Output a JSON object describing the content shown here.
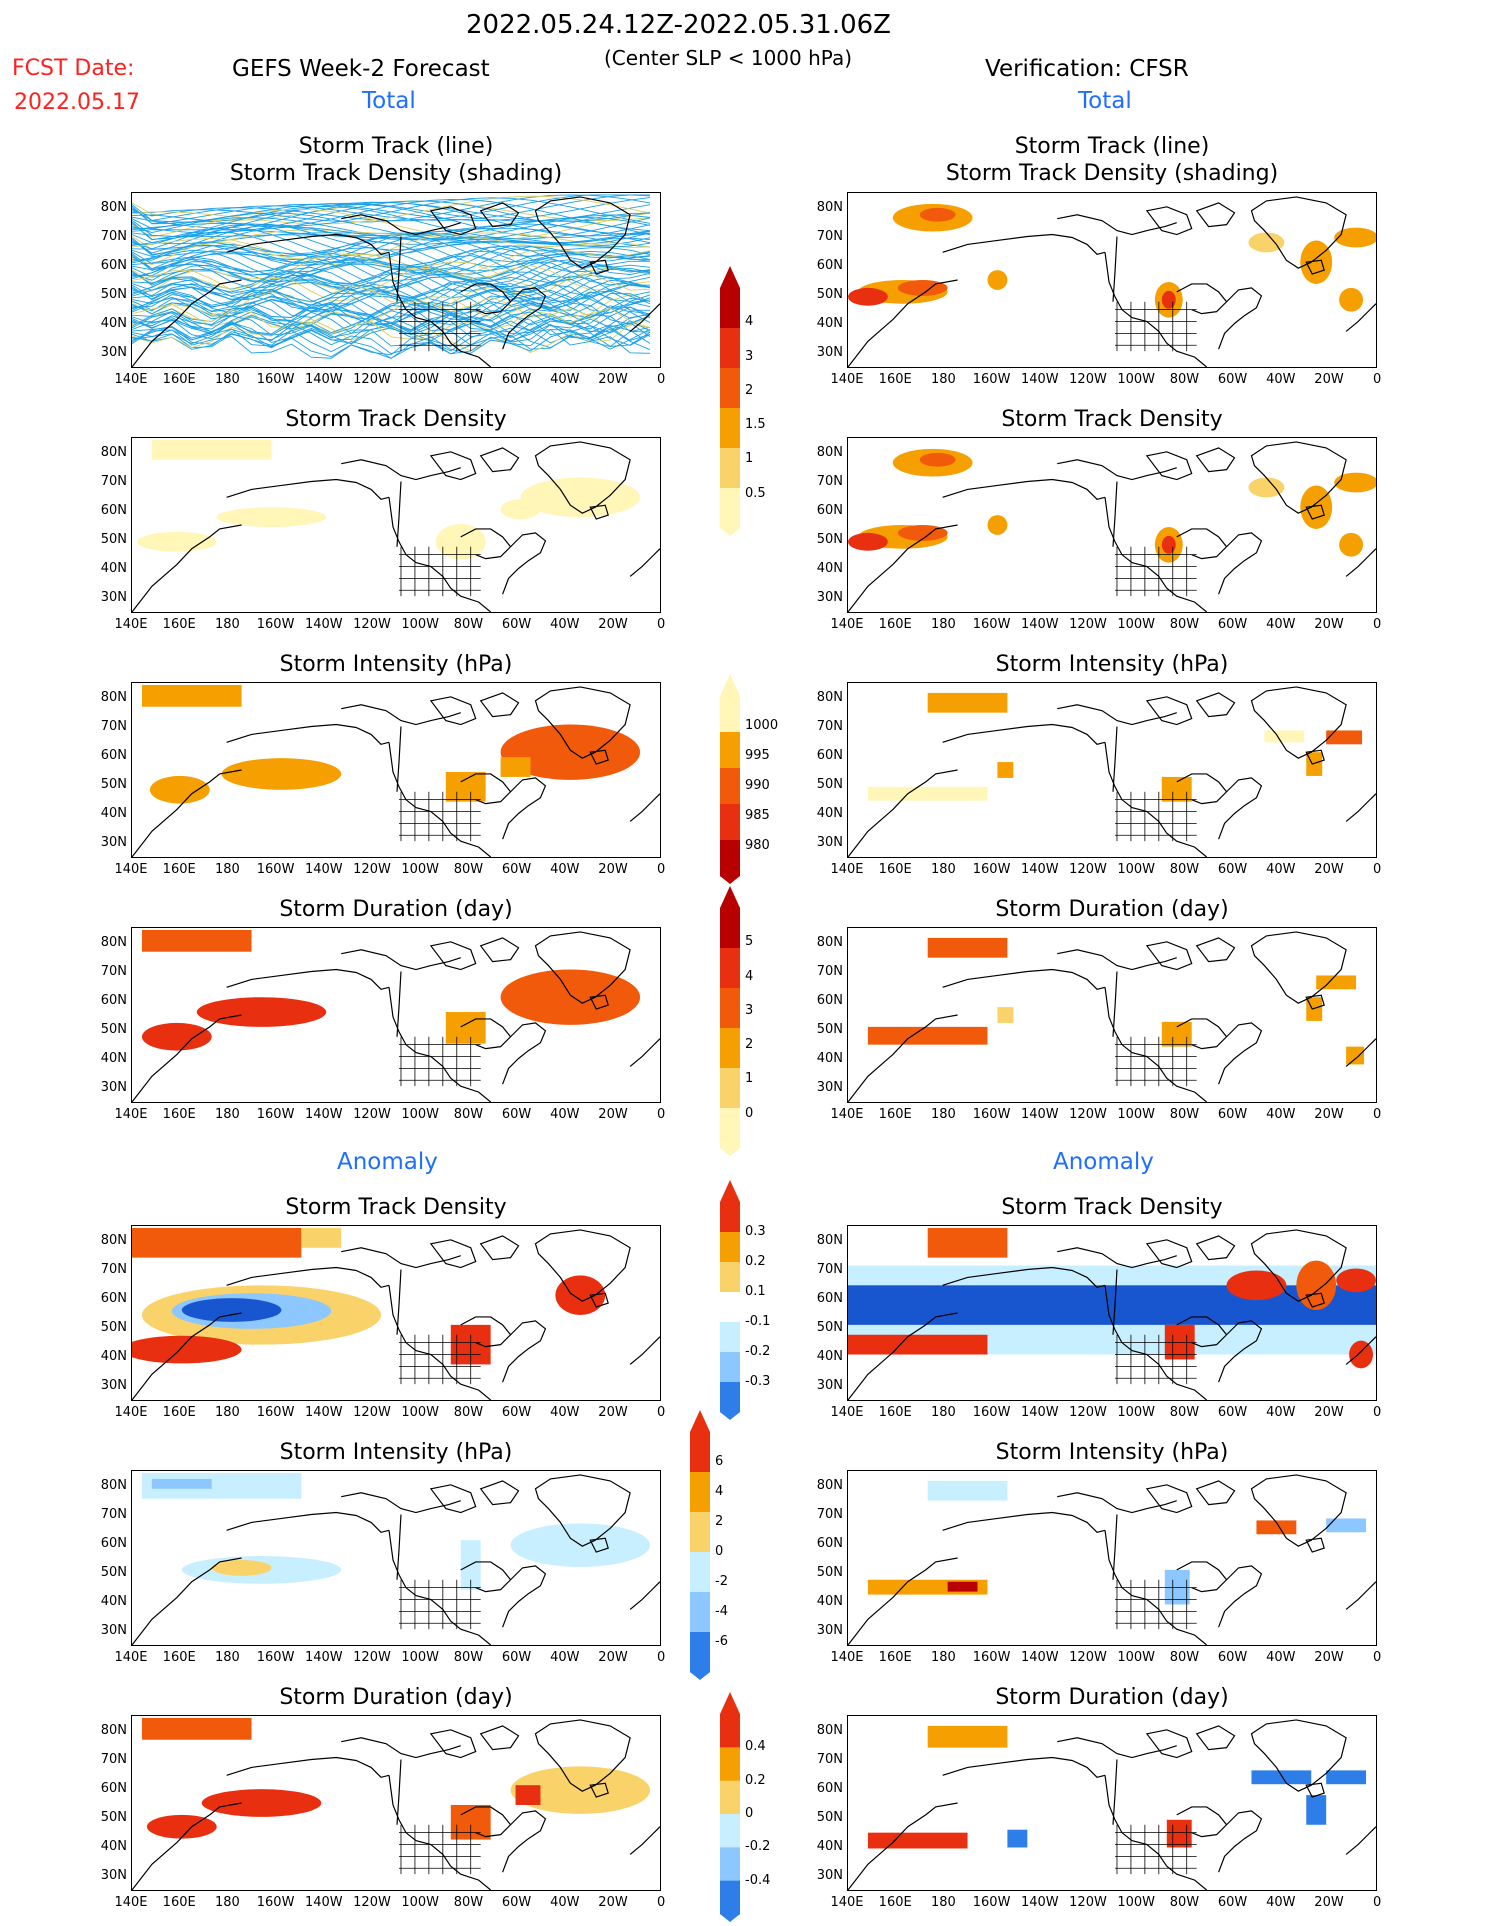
{
  "header": {
    "date_range": "2022.05.24.12Z-2022.05.31.06Z",
    "threshold": "(Center SLP < 1000 hPa)",
    "fcst_label": "FCST Date:",
    "fcst_date": "2022.05.17",
    "left_title": "GEFS Week-2 Forecast",
    "right_title": "Verification: CFSR",
    "total_label": "Total",
    "anomaly_label": "Anomaly"
  },
  "panel_titles": {
    "track_line": "Storm Track (line)",
    "track_density_shading": "Storm Track Density (shading)",
    "track_density": "Storm Track Density",
    "intensity": "Storm Intensity (hPa)",
    "duration": "Storm Duration (day)"
  },
  "axes": {
    "lat_labels": [
      "80N",
      "70N",
      "60N",
      "50N",
      "40N",
      "30N"
    ],
    "lon_labels": [
      "140E",
      "160E",
      "180",
      "160W",
      "140W",
      "120W",
      "100W",
      "80W",
      "60W",
      "40W",
      "20W",
      "0"
    ]
  },
  "colorbars": {
    "total_density": [
      "4",
      "3",
      "2",
      "1.5",
      "1",
      "0.5"
    ],
    "total_intensity": [
      "1000",
      "995",
      "990",
      "985",
      "980"
    ],
    "total_duration": [
      "5",
      "4",
      "3",
      "2",
      "1",
      "0"
    ],
    "anom_density": [
      "0.3",
      "0.2",
      "0.1",
      "-0.1",
      "-0.2",
      "-0.3"
    ],
    "anom_intensity": [
      "6",
      "4",
      "2",
      "0",
      "-2",
      "-4",
      "-6"
    ],
    "anom_duration": [
      "0.4",
      "0.2",
      "0",
      "-0.2",
      "-0.4"
    ]
  },
  "colors": {
    "dark_red": "#b80000",
    "red": "#e83010",
    "orange_red": "#f05a0a",
    "orange": "#f5a000",
    "light_orange": "#fad26a",
    "pale_yellow": "#fff6b8",
    "light_blue": "#c8efff",
    "mid_blue": "#8cc8ff",
    "blue": "#2d7ee8",
    "dark_blue": "#1856d0",
    "track_line": "#1aa0e8"
  }
}
